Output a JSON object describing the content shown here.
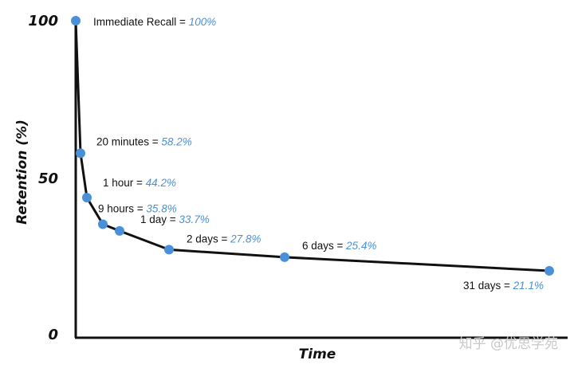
{
  "chart_data": {
    "type": "line",
    "title": "",
    "xlabel": "Time",
    "ylabel": "Retention (%)",
    "ylim": [
      0,
      100
    ],
    "yticks": [
      "0",
      "50",
      "100"
    ],
    "grid": false,
    "line_color": "#111111",
    "point_color": "#4a90d9",
    "value_color": "#4a90d9",
    "series": [
      {
        "points": [
          {
            "x_hours": 0,
            "y": 100,
            "label": "Immediate Recall",
            "value_text": "100%"
          },
          {
            "x_hours": 0.333,
            "y": 58.2,
            "label": "20 minutes",
            "value_text": "58.2%"
          },
          {
            "x_hours": 1,
            "y": 44.2,
            "label": "1 hour",
            "value_text": "44.2%"
          },
          {
            "x_hours": 9,
            "y": 35.8,
            "label": "9 hours",
            "value_text": "35.8%"
          },
          {
            "x_hours": 24,
            "y": 33.7,
            "label": "1 day",
            "value_text": "33.7%"
          },
          {
            "x_hours": 48,
            "y": 27.8,
            "label": "2 days",
            "value_text": "27.8%"
          },
          {
            "x_hours": 144,
            "y": 25.4,
            "label": "6 days",
            "value_text": "25.4%"
          },
          {
            "x_hours": 744,
            "y": 21.1,
            "label": "31 days",
            "value_text": "21.1%"
          }
        ]
      }
    ]
  },
  "watermark": "知乎 @优思学苑"
}
